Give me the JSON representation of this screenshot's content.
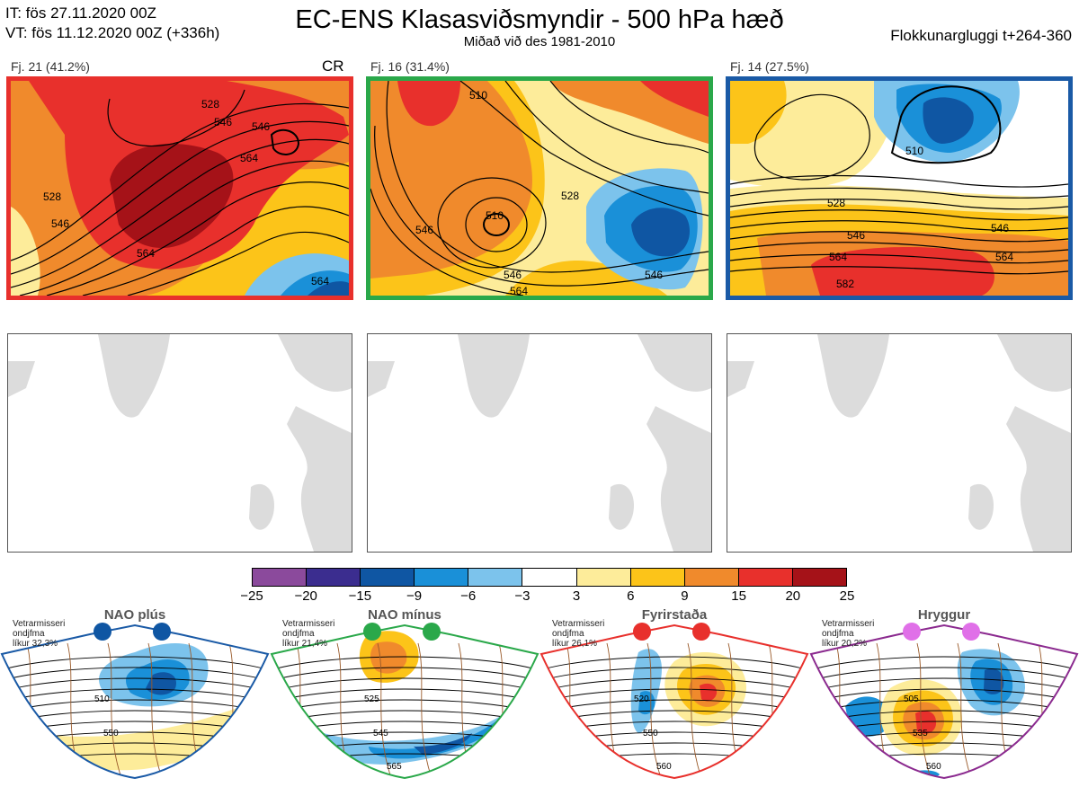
{
  "header": {
    "it_line": "IT: fös 27.11.2020 00Z",
    "vt_line": "VT: fös 11.12.2020 00Z  (+336h)",
    "title": "EC-ENS Klasasviðsmyndir - 500 hPa hæð",
    "subtitle": "Miðað við des 1981-2010",
    "window": "Flokkunargluggi t+264-360"
  },
  "clusters": [
    {
      "label": "Fj. 21 (41.2%)",
      "border_color": "#e8302c",
      "tag": "CR",
      "contour_labels": [
        "528",
        "546",
        "564",
        "546",
        "528",
        "546",
        "564",
        "564"
      ]
    },
    {
      "label": "Fj. 16 (31.4%)",
      "border_color": "#2aa84a",
      "contour_labels": [
        "510",
        "528",
        "510",
        "546",
        "546",
        "546",
        "564"
      ]
    },
    {
      "label": "Fj. 14 (27.5%)",
      "border_color": "#1a5aa6",
      "contour_labels": [
        "510",
        "528",
        "546",
        "546",
        "564",
        "564",
        "582"
      ]
    }
  ],
  "colorbar": {
    "colors": [
      "#8b4a9c",
      "#3b2d8f",
      "#0f56a3",
      "#1a90d8",
      "#7cc3ec",
      "#ffffff",
      "#fdec9a",
      "#fcc419",
      "#f08a2c",
      "#e8302c",
      "#a51218"
    ],
    "ticks": [
      "−25",
      "−20",
      "−15",
      "−9",
      "−6",
      "−3",
      "3",
      "6",
      "9",
      "15",
      "20",
      "25"
    ]
  },
  "regimes": [
    {
      "title": "NAO plús",
      "note_line1": "Vetrarmisseri",
      "note_line2": "ondjfma",
      "note_line3": "líkur 32,3%",
      "border_color": "#1a5aa6",
      "dot_color": "#0f56a3",
      "labels": [
        "510",
        "550"
      ]
    },
    {
      "title": "NAO mínus",
      "note_line1": "Vetrarmisseri",
      "note_line2": "ondjfma",
      "note_line3": "líkur 21,4%",
      "border_color": "#2aa84a",
      "dot_color": "#2aa84a",
      "labels": [
        "525",
        "545",
        "565"
      ]
    },
    {
      "title": "Fyrirstaða",
      "note_line1": "Vetrarmisseri",
      "note_line2": "ondjfma",
      "note_line3": "líkur 26,1%",
      "border_color": "#e8302c",
      "dot_color": "#e8302c",
      "labels": [
        "520",
        "550",
        "560"
      ]
    },
    {
      "title": "Hryggur",
      "note_line1": "Vetrarmisseri",
      "note_line2": "ondjfma",
      "note_line3": "líkur 20,2%",
      "border_color": "#8b2a8f",
      "dot_color": "#e070e8",
      "labels": [
        "505",
        "535",
        "560"
      ]
    }
  ]
}
